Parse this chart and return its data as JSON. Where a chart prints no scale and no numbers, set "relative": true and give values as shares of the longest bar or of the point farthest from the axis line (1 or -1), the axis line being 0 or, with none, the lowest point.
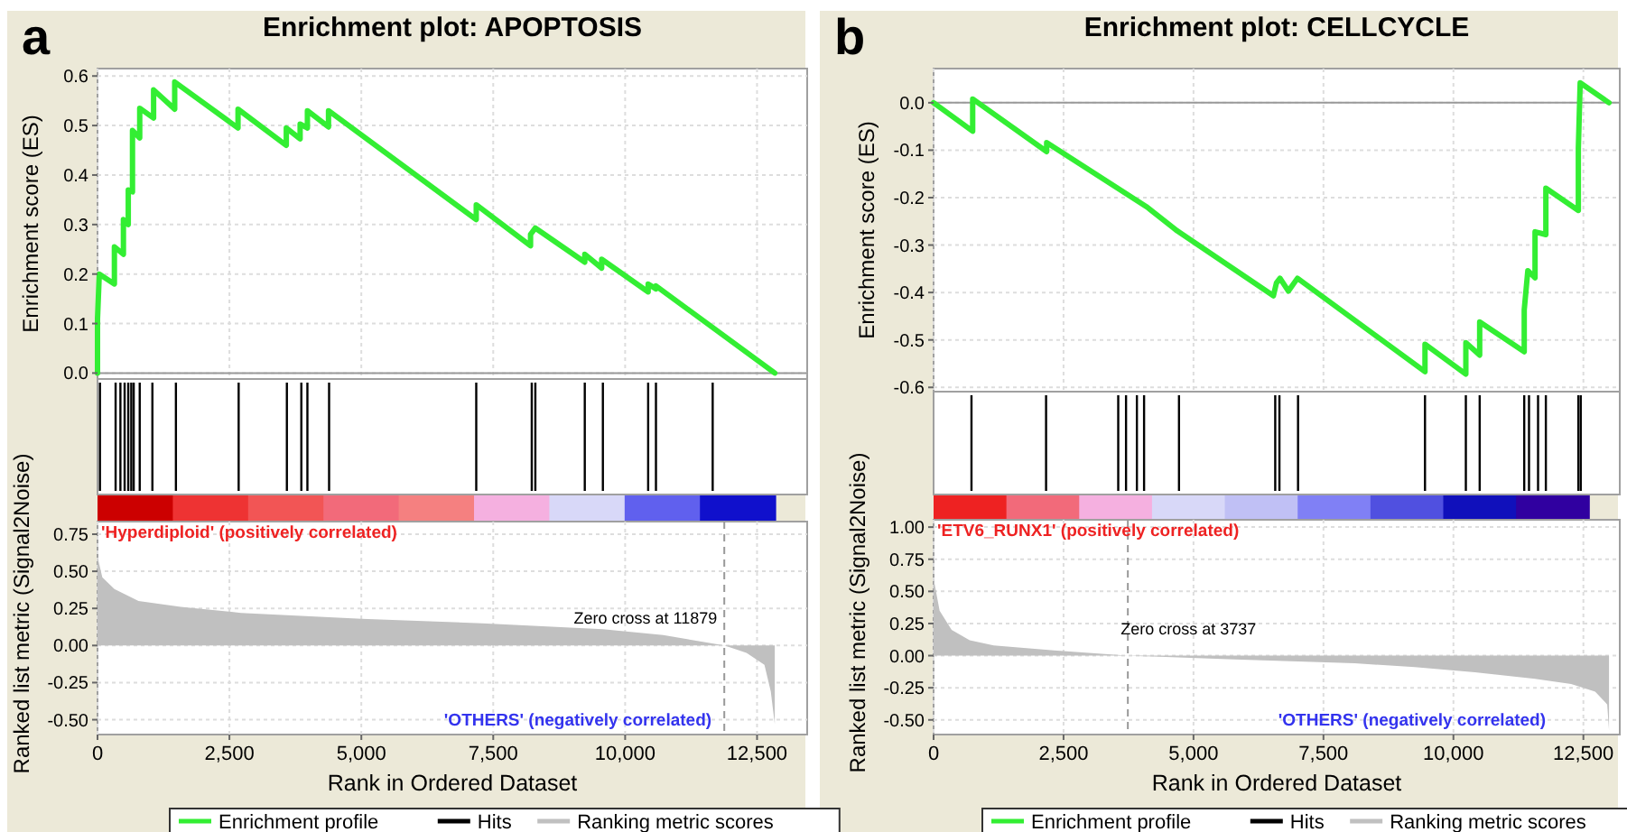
{
  "chart_data": [
    {
      "type": "line",
      "title": "Enrichment plot: APOPTOSIS",
      "ylabel": "Enrichment score (ES)",
      "annotations": [
        "a"
      ],
      "xlim": [
        0,
        13450
      ],
      "ylim": [
        -0.012,
        0.615
      ],
      "xticks": [
        {
          "value": 0,
          "label": null
        },
        {
          "value": 2500,
          "label": null
        },
        {
          "value": 5000,
          "label": null
        },
        {
          "value": 7500,
          "label": null
        },
        {
          "value": 10000,
          "label": null
        },
        {
          "value": 12500,
          "label": null
        }
      ],
      "yticks": [
        {
          "value": 0,
          "label": "0.0"
        },
        {
          "value": 0.1,
          "label": "0.1"
        },
        {
          "value": 0.2,
          "label": "0.2"
        },
        {
          "value": 0.3,
          "label": "0.3"
        },
        {
          "value": 0.4,
          "label": "0.4"
        },
        {
          "value": 0.5,
          "label": "0.5"
        },
        {
          "value": 0.6,
          "label": "0.6"
        }
      ],
      "tick_labels": "y",
      "grid": true,
      "legend": "bottom",
      "ref_lines": [
        {
          "axis": "y",
          "value": 0,
          "color": "#999999"
        }
      ],
      "series": [
        {
          "name": "Enrichment profile",
          "color": "#33ee33",
          "x": [
            0,
            0,
            34,
            320,
            320,
            491,
            491,
            583,
            583,
            663,
            663,
            800,
            800,
            1063,
            1063,
            1463,
            1463,
            2663,
            2663,
            3578,
            3578,
            3840,
            3840,
            3978,
            3978,
            4378,
            4378,
            7178,
            7178,
            8207,
            8207,
            8298,
            9235,
            9235,
            9555,
            9555,
            10436,
            10436,
            10584,
            10584,
            12836
          ],
          "values": [
            0,
            0.11,
            0.2,
            0.18,
            0.255,
            0.24,
            0.31,
            0.3,
            0.37,
            0.366,
            0.49,
            0.475,
            0.535,
            0.515,
            0.572,
            0.533,
            0.588,
            0.495,
            0.533,
            0.46,
            0.495,
            0.473,
            0.503,
            0.495,
            0.53,
            0.497,
            0.53,
            0.31,
            0.34,
            0.257,
            0.28,
            0.293,
            0.224,
            0.24,
            0.212,
            0.23,
            0.164,
            0.18,
            0.17,
            0.176,
            0
          ]
        }
      ]
    },
    {
      "type": "bar",
      "relative": true,
      "tick_labels": false,
      "legend": "bottom",
      "x": [
        46,
        343,
        434,
        514,
        583,
        640,
        686,
        800,
        1040,
        1486,
        2675,
        3589,
        3863,
        3978,
        4389,
        7178,
        8230,
        8298,
        9235,
        9578,
        10436,
        10584,
        11659
      ],
      "xlim": [
        0,
        13450
      ],
      "series": [
        {
          "name": "Hits",
          "color": "#000000",
          "values": [
            1,
            1,
            1,
            1,
            1,
            1,
            1,
            1,
            1,
            1,
            1,
            1,
            1,
            1,
            1,
            1,
            1,
            1,
            1,
            1,
            1,
            1,
            1
          ]
        }
      ]
    },
    {
      "type": "area",
      "xlabel": "Rank in Ordered Dataset",
      "ylabel": "Ranked list metric (Signal2Noise)",
      "xlim": [
        0,
        13450
      ],
      "ylim": [
        -0.6,
        0.835
      ],
      "xticks": [
        0,
        {
          "value": 2500,
          "label": "2,500"
        },
        {
          "value": 5000,
          "label": "5,000"
        },
        {
          "value": 7500,
          "label": "7,500"
        },
        {
          "value": 10000,
          "label": "10,000"
        },
        {
          "value": 12500,
          "label": "12,500"
        }
      ],
      "yticks": [
        {
          "value": -0.5,
          "label": "-0.50"
        },
        {
          "value": -0.25,
          "label": "-0.25"
        },
        {
          "value": 0,
          "label": "0.00"
        },
        {
          "value": 0.25,
          "label": "0.25"
        },
        {
          "value": 0.5,
          "label": "0.50"
        },
        {
          "value": 0.75,
          "label": "0.75"
        }
      ],
      "grid": true,
      "legend": "bottom",
      "annotations": [
        "'Hyperdiploid' (positively correlated)",
        "'OTHERS' (negatively correlated)",
        {
          "text": "Zero cross at 11879",
          "x": 11879,
          "y": 0
        }
      ],
      "ref_lines": [
        {
          "axis": "x",
          "value": 11879,
          "color": "#999999",
          "line_style": "dashed"
        }
      ],
      "series": [
        {
          "name": "Ranking metric scores",
          "color": "#c0c0c0",
          "x": [
            0,
            91,
            320,
            777,
            1577,
            2720,
            5006,
            7292,
            9578,
            10722,
            11879,
            12300,
            12640,
            12760,
            12836
          ],
          "values": [
            0.6,
            0.46,
            0.38,
            0.3,
            0.26,
            0.22,
            0.18,
            0.15,
            0.11,
            0.07,
            0,
            -0.05,
            -0.13,
            -0.31,
            -0.53
          ]
        }
      ]
    },
    {
      "type": "line",
      "title": "Enrichment plot: CELLCYCLE",
      "ylabel": "Enrichment score (ES)",
      "annotations": [
        "b"
      ],
      "xlim": [
        0,
        13200
      ],
      "ylim": [
        -0.609,
        0.072
      ],
      "xticks": [
        {
          "value": 0,
          "label": null
        },
        {
          "value": 2500,
          "label": null
        },
        {
          "value": 5000,
          "label": null
        },
        {
          "value": 7500,
          "label": null
        },
        {
          "value": 10000,
          "label": null
        },
        {
          "value": 12500,
          "label": null
        }
      ],
      "yticks": [
        {
          "value": -0.6,
          "label": "-0.6"
        },
        {
          "value": -0.5,
          "label": "-0.5"
        },
        {
          "value": -0.4,
          "label": "-0.4"
        },
        {
          "value": -0.3,
          "label": "-0.3"
        },
        {
          "value": -0.2,
          "label": "-0.2"
        },
        {
          "value": -0.1,
          "label": "-0.1"
        },
        {
          "value": 0,
          "label": "0.0"
        }
      ],
      "tick_labels": "y",
      "grid": true,
      "legend": "bottom",
      "ref_lines": [
        {
          "axis": "y",
          "value": 0,
          "color": "#999999"
        }
      ],
      "series": [
        {
          "name": "Enrichment profile",
          "color": "#33ee33",
          "x": [
            0,
            752,
            752,
            2175,
            2175,
            4107,
            4686,
            6537,
            6595,
            6664,
            6826,
            7000,
            9453,
            9453,
            10239,
            10239,
            10505,
            10505,
            11362,
            11362,
            11431,
            11570,
            11570,
            11778,
            11778,
            12403,
            12403,
            12438,
            12993
          ],
          "values": [
            0,
            -0.06,
            0.008,
            -0.103,
            -0.084,
            -0.22,
            -0.27,
            -0.407,
            -0.38,
            -0.37,
            -0.397,
            -0.37,
            -0.567,
            -0.509,
            -0.572,
            -0.506,
            -0.532,
            -0.462,
            -0.525,
            -0.437,
            -0.354,
            -0.369,
            -0.272,
            -0.278,
            -0.18,
            -0.227,
            -0.096,
            0.042,
            0
          ]
        }
      ]
    },
    {
      "type": "bar",
      "relative": true,
      "tick_labels": false,
      "legend": "bottom",
      "x": [
        729,
        2164,
        3552,
        3702,
        3911,
        4049,
        4721,
        6572,
        6653,
        7011,
        9453,
        10239,
        10505,
        11362,
        11454,
        11628,
        11778,
        12403,
        12449
      ],
      "xlim": [
        0,
        13200
      ],
      "series": [
        {
          "name": "Hits",
          "color": "#000000",
          "values": [
            1,
            1,
            1,
            1,
            1,
            1,
            1,
            1,
            1,
            1,
            1,
            1,
            1,
            1,
            1,
            1,
            1,
            1,
            1
          ]
        }
      ]
    },
    {
      "type": "area",
      "xlabel": "Rank in Ordered Dataset",
      "ylabel": "Ranked list metric (Signal2Noise)",
      "xlim": [
        0,
        13200
      ],
      "ylim": [
        -0.614,
        1.057
      ],
      "xticks": [
        0,
        {
          "value": 2500,
          "label": "2,500"
        },
        {
          "value": 5000,
          "label": "5,000"
        },
        {
          "value": 7500,
          "label": "7,500"
        },
        {
          "value": 10000,
          "label": "10,000"
        },
        {
          "value": 12500,
          "label": "12,500"
        }
      ],
      "yticks": [
        {
          "value": -0.5,
          "label": "-0.50"
        },
        {
          "value": -0.25,
          "label": "-0.25"
        },
        {
          "value": 0,
          "label": "0.00"
        },
        {
          "value": 0.25,
          "label": "0.25"
        },
        {
          "value": 0.5,
          "label": "0.50"
        },
        {
          "value": 0.75,
          "label": "0.75"
        },
        {
          "value": 1,
          "label": "1.00"
        }
      ],
      "grid": true,
      "legend": "bottom",
      "annotations": [
        "'ETV6_RUNX1' (positively correlated)",
        "'OTHERS' (negatively correlated)",
        {
          "text": "Zero cross at 3737",
          "x": 3737,
          "y": 0
        }
      ],
      "ref_lines": [
        {
          "axis": "x",
          "value": 3737,
          "color": "#999999",
          "line_style": "dashed"
        }
      ],
      "series": [
        {
          "name": "Ranking metric scores",
          "color": "#c0c0c0",
          "x": [
            0,
            116,
            347,
            694,
            1157,
            2314,
            3726,
            5785,
            8099,
            9256,
            10413,
            11570,
            12264,
            12727,
            12958,
            12993
          ],
          "values": [
            0.6,
            0.35,
            0.2,
            0.12,
            0.08,
            0.04,
            0,
            -0.03,
            -0.06,
            -0.09,
            -0.13,
            -0.18,
            -0.22,
            -0.28,
            -0.38,
            -0.58
          ]
        }
      ]
    }
  ]
}
